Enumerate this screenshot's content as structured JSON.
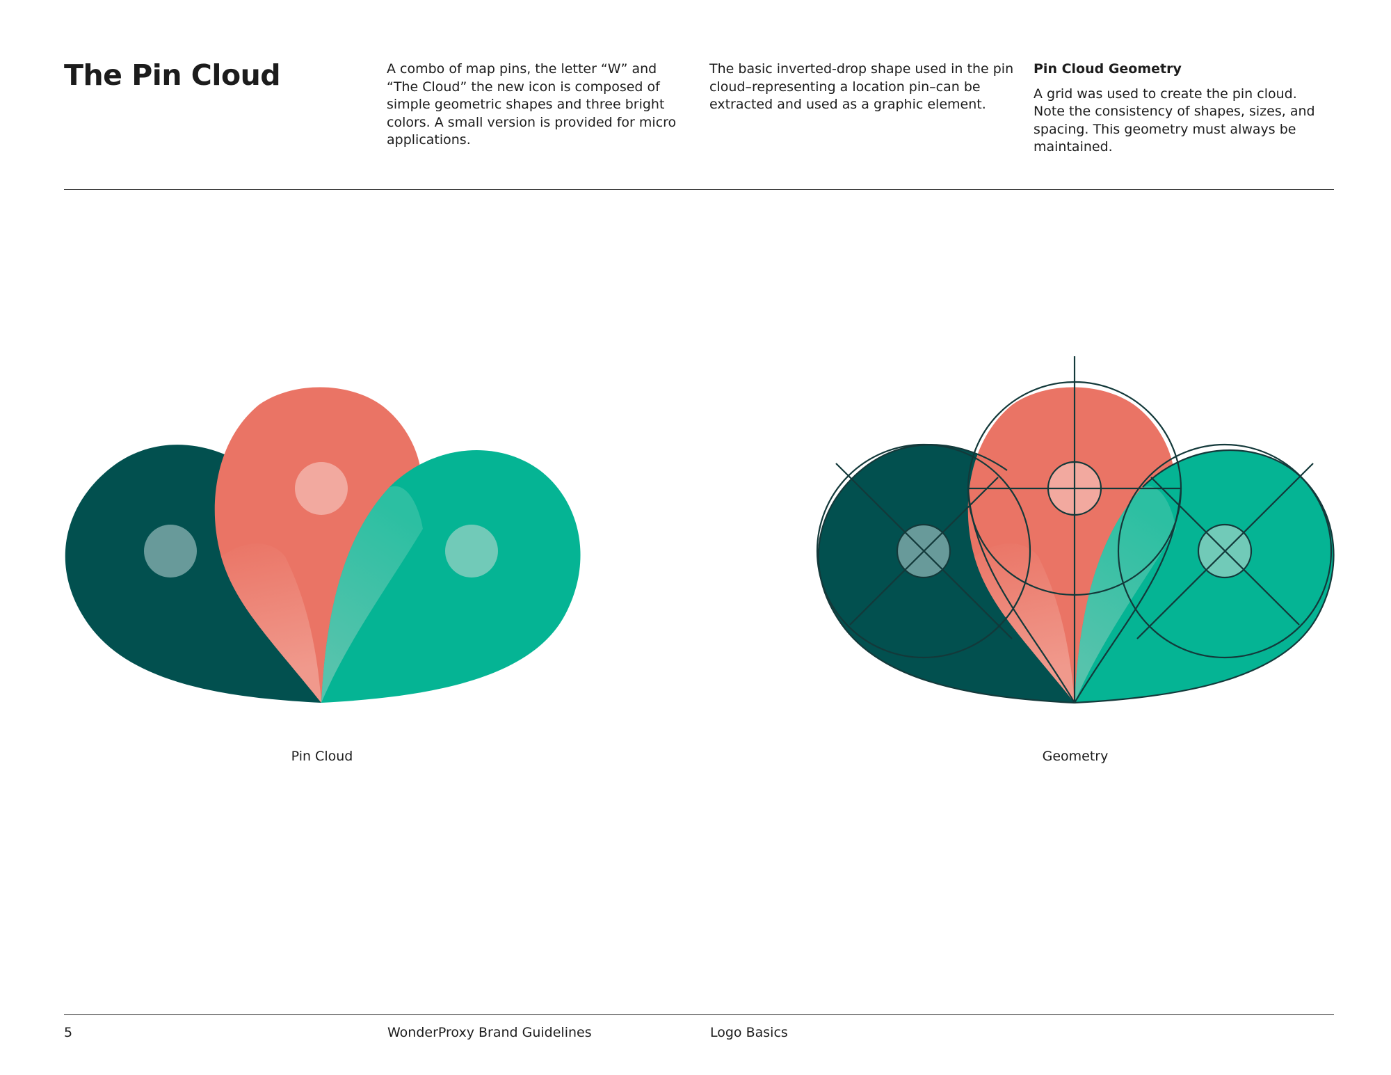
{
  "header": {
    "title": "The Pin Cloud",
    "col1": "A combo of map pins, the letter “W” and “The Cloud” the new icon is composed of simple geometric shapes and three bright colors. A small version is provided for micro applications.",
    "col2": "The basic inverted-drop shape used in the pin cloud–representing a location pin–can be extracted and used as a graphic element.",
    "col3_heading": "Pin Cloud Geometry",
    "col3": "A grid was used to create the pin cloud. Note the consistency of shapes, sizes, and spacing. This geometry must always be maintained."
  },
  "figures": {
    "left_caption": "Pin Cloud",
    "right_caption": "Geometry"
  },
  "colors": {
    "dark_teal": "#02504f",
    "coral": "#ea7465",
    "green": "#05b494",
    "line": "#13393a"
  },
  "footer": {
    "page_number": "5",
    "brand": "WonderProxy Brand Guidelines",
    "section": "Logo Basics"
  }
}
